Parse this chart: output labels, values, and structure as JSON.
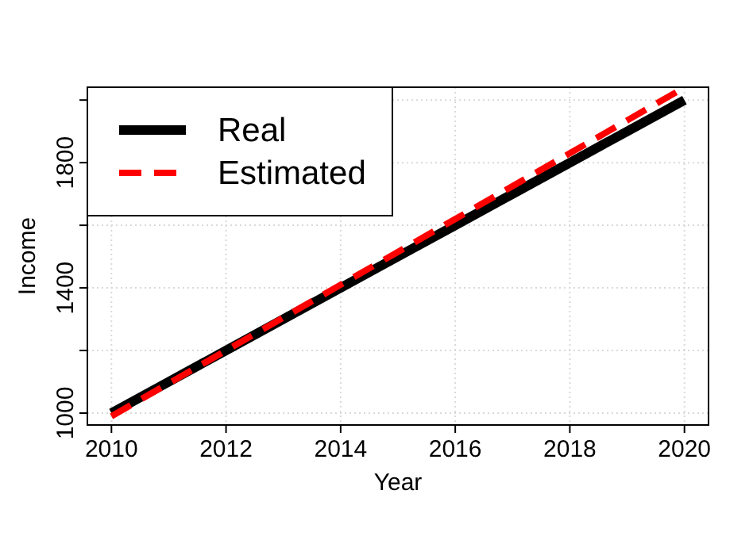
{
  "chart_data": {
    "type": "line",
    "xlabel": "Year",
    "ylabel": "Income",
    "x": [
      2010,
      2011,
      2012,
      2013,
      2014,
      2015,
      2016,
      2017,
      2018,
      2019,
      2020
    ],
    "series": [
      {
        "name": "Real",
        "color": "#000000",
        "line_style": "solid",
        "values": [
          1000,
          1100,
          1200,
          1300,
          1400,
          1500,
          1600,
          1700,
          1800,
          1900,
          2000
        ]
      },
      {
        "name": "Estimated",
        "color": "#ff0000",
        "line_style": "dashed",
        "values": [
          990,
          1095,
          1200,
          1305,
          1410,
          1515,
          1620,
          1725,
          1830,
          1935,
          2040
        ]
      }
    ],
    "xlim": [
      2009.58,
      2020.42
    ],
    "xticks": [
      2010,
      2012,
      2014,
      2016,
      2018,
      2020
    ],
    "ylim": [
      962,
      2041
    ],
    "yticks": [
      1000,
      {
        "value": 1200,
        "label": null
      },
      1400,
      {
        "value": 1600,
        "label": null
      },
      1800,
      {
        "value": 2000,
        "label": null
      }
    ],
    "grid": true,
    "legend": "top left"
  }
}
